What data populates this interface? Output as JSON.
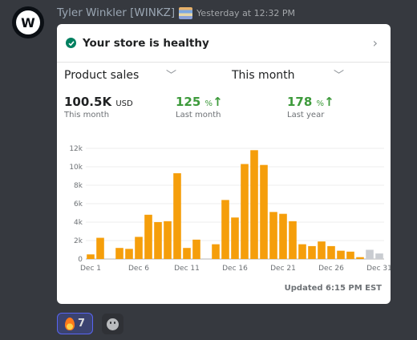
{
  "message": {
    "author": "Tyler Winkler [WINKZ]",
    "timestamp": "Yesterday at 12:32 PM",
    "avatar_letter": "W"
  },
  "card": {
    "status_title": "Your store is healthy",
    "select_metric": "Product sales",
    "select_period": "This month",
    "metrics": [
      {
        "value": "100.5K",
        "unit": "USD",
        "label": "This month"
      },
      {
        "value": "125",
        "unit": "%",
        "arrow": "↑",
        "label": "Last month"
      },
      {
        "value": "178",
        "unit": "%",
        "arrow": "↑",
        "label": "Last year"
      }
    ],
    "updated": "Updated 6:15 PM EST"
  },
  "chart_data": {
    "type": "bar",
    "ylim": [
      0,
      12000
    ],
    "yticks": [
      "0",
      "2k",
      "4k",
      "6k",
      "8k",
      "10k",
      "12k"
    ],
    "xtick_labels": [
      "Dec 1",
      "Dec 6",
      "Dec 11",
      "Dec 16",
      "Dec 21",
      "Dec 26",
      "Dec 31"
    ],
    "days": [
      1,
      2,
      3,
      4,
      5,
      6,
      7,
      8,
      9,
      10,
      11,
      12,
      13,
      14,
      15,
      16,
      17,
      18,
      19,
      20,
      21,
      22,
      23,
      24,
      25,
      26,
      27,
      28,
      29,
      30,
      31
    ],
    "values": [
      500,
      2300,
      0,
      1200,
      1100,
      2400,
      4800,
      4000,
      4100,
      9300,
      1200,
      2100,
      0,
      1600,
      6400,
      4500,
      10300,
      11800,
      10200,
      5100,
      4900,
      4100,
      1600,
      1400,
      1900,
      1400,
      900,
      800,
      200,
      1000,
      600
    ],
    "projected_from_day": 30,
    "bar_color": "#f59e0b",
    "projected_color": "#c9ccd1"
  },
  "reactions": [
    {
      "emoji": "fire",
      "count": "7"
    }
  ]
}
